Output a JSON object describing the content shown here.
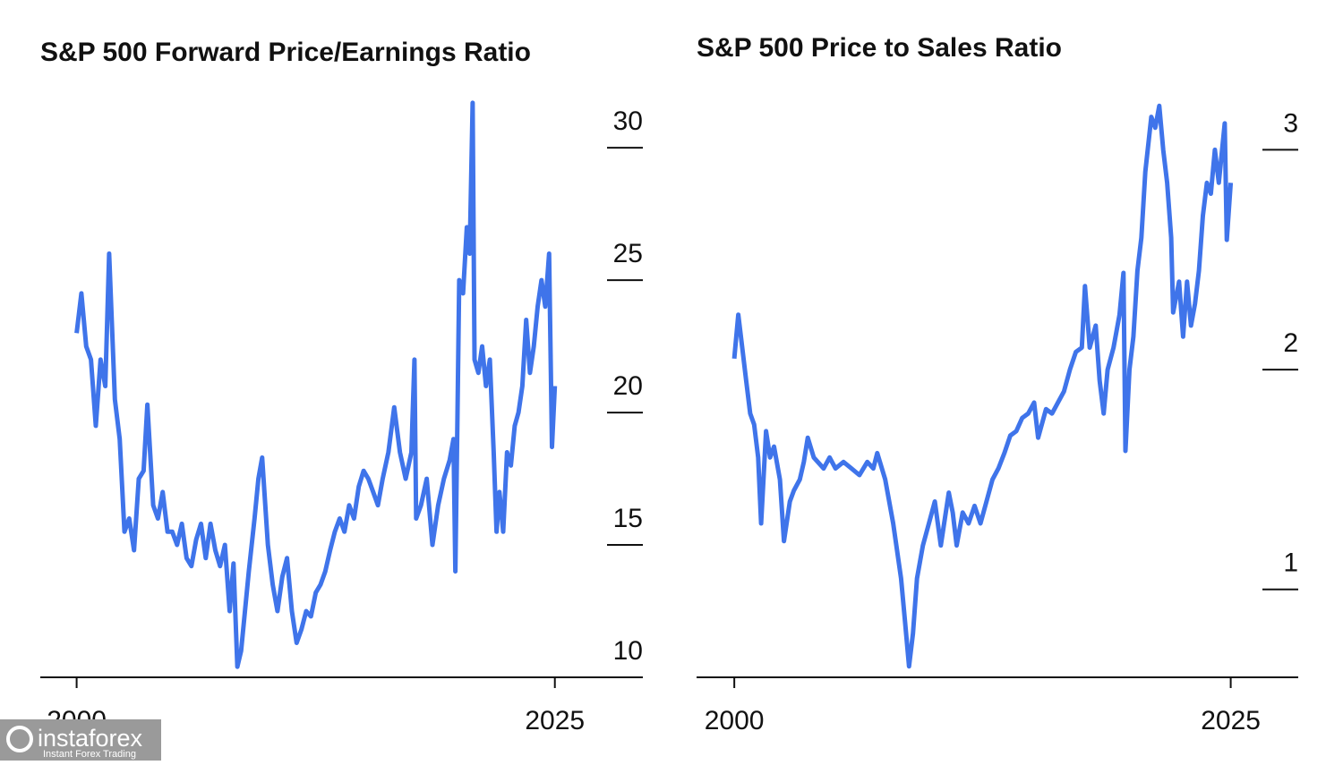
{
  "chart_data": [
    {
      "type": "line",
      "title": "S&P 500 Forward Price/Earnings Ratio",
      "color": "#3f74ea",
      "xlim": [
        1998.1,
        2029.6
      ],
      "xticks": [
        2000,
        2025
      ],
      "ylim": [
        10,
        32
      ],
      "yticks": [
        10,
        15,
        20,
        25,
        30
      ],
      "x": [
        2000.0,
        2000.25,
        2000.5,
        2000.75,
        2001.0,
        2001.25,
        2001.5,
        2001.7,
        2002.0,
        2002.25,
        2002.5,
        2002.75,
        2003.0,
        2003.25,
        2003.5,
        2003.7,
        2004.0,
        2004.25,
        2004.5,
        2004.75,
        2005.0,
        2005.25,
        2005.5,
        2005.75,
        2006.0,
        2006.25,
        2006.5,
        2006.75,
        2007.0,
        2007.25,
        2007.5,
        2007.75,
        2008.0,
        2008.2,
        2008.4,
        2008.6,
        2008.8,
        2009.0,
        2009.3,
        2009.5,
        2009.7,
        2010.0,
        2010.25,
        2010.5,
        2010.75,
        2011.0,
        2011.25,
        2011.5,
        2011.75,
        2012.0,
        2012.25,
        2012.5,
        2012.75,
        2013.0,
        2013.25,
        2013.5,
        2013.75,
        2014.0,
        2014.25,
        2014.5,
        2014.75,
        2015.0,
        2015.25,
        2015.5,
        2015.75,
        2016.0,
        2016.3,
        2016.6,
        2016.9,
        2017.2,
        2017.5,
        2017.66,
        2017.75,
        2018.0,
        2018.3,
        2018.6,
        2018.9,
        2019.2,
        2019.5,
        2019.7,
        2019.8,
        2019.9,
        2020.0,
        2020.2,
        2020.4,
        2020.55,
        2020.7,
        2020.8,
        2021.0,
        2021.2,
        2021.4,
        2021.6,
        2021.8,
        2021.95,
        2022.1,
        2022.3,
        2022.5,
        2022.7,
        2022.9,
        2023.1,
        2023.3,
        2023.5,
        2023.7,
        2023.9,
        2024.1,
        2024.3,
        2024.5,
        2024.7,
        2024.85,
        2025.0
      ],
      "values": [
        23,
        24.5,
        22.5,
        22,
        19.5,
        22,
        21,
        26,
        20.5,
        19,
        15.5,
        16,
        14.8,
        17.5,
        17.8,
        20.3,
        16.5,
        16,
        17,
        15.5,
        15.5,
        15,
        15.8,
        14.5,
        14.2,
        15.2,
        15.8,
        14.5,
        15.8,
        14.8,
        14.2,
        15,
        12.5,
        14.3,
        10.4,
        11,
        12.5,
        14,
        16,
        17.5,
        18.3,
        15,
        13.5,
        12.5,
        13.8,
        14.5,
        12.5,
        11.3,
        11.8,
        12.5,
        12.3,
        13.2,
        13.5,
        14,
        14.8,
        15.5,
        16,
        15.5,
        16.5,
        16,
        17.2,
        17.8,
        17.5,
        17,
        16.5,
        17.5,
        18.5,
        20.2,
        18.5,
        17.5,
        18.5,
        22,
        16,
        16.5,
        17.5,
        15,
        16.5,
        17.5,
        18.2,
        19,
        14,
        19.5,
        25,
        24.5,
        27,
        26,
        31.7,
        22,
        21.5,
        22.5,
        21,
        22,
        18.5,
        15.5,
        17,
        15.5,
        18.5,
        18,
        19.5,
        20,
        21,
        23.5,
        21.5,
        22.5,
        24,
        25,
        24,
        26,
        18.7,
        21
      ]
    },
    {
      "type": "line",
      "title": "S&P 500 Price to Sales Ratio",
      "color": "#3f74ea",
      "xlim": [
        1998.1,
        2028.4
      ],
      "xticks": [
        2000,
        2025
      ],
      "ylim": [
        0.6,
        3.25
      ],
      "yticks": [
        1,
        2,
        3
      ],
      "x": [
        2000.0,
        2000.2,
        2000.4,
        2000.6,
        2000.8,
        2001.0,
        2001.2,
        2001.35,
        2001.6,
        2001.8,
        2002.0,
        2002.3,
        2002.5,
        2002.8,
        2003.0,
        2003.3,
        2003.5,
        2003.7,
        2004.0,
        2004.5,
        2004.8,
        2005.1,
        2005.5,
        2005.9,
        2006.3,
        2006.7,
        2007.0,
        2007.2,
        2007.6,
        2008.0,
        2008.4,
        2008.6,
        2008.8,
        2009.0,
        2009.2,
        2009.5,
        2009.8,
        2010.1,
        2010.4,
        2010.8,
        2011.0,
        2011.2,
        2011.5,
        2011.8,
        2012.1,
        2012.4,
        2012.7,
        2013.0,
        2013.3,
        2013.6,
        2013.9,
        2014.2,
        2014.5,
        2014.8,
        2015.1,
        2015.3,
        2015.7,
        2016.0,
        2016.3,
        2016.6,
        2016.9,
        2017.2,
        2017.5,
        2017.66,
        2017.9,
        2018.2,
        2018.4,
        2018.6,
        2018.8,
        2019.1,
        2019.4,
        2019.6,
        2019.7,
        2019.9,
        2020.1,
        2020.3,
        2020.5,
        2020.7,
        2021.0,
        2021.2,
        2021.4,
        2021.6,
        2021.8,
        2022.0,
        2022.1,
        2022.4,
        2022.6,
        2022.8,
        2023.0,
        2023.2,
        2023.4,
        2023.6,
        2023.8,
        2024.0,
        2024.2,
        2024.4,
        2024.7,
        2024.8,
        2025.0
      ],
      "values": [
        2.05,
        2.25,
        2.1,
        1.95,
        1.8,
        1.75,
        1.6,
        1.3,
        1.72,
        1.6,
        1.65,
        1.5,
        1.22,
        1.4,
        1.45,
        1.5,
        1.58,
        1.69,
        1.6,
        1.55,
        1.6,
        1.55,
        1.58,
        1.55,
        1.52,
        1.58,
        1.55,
        1.62,
        1.5,
        1.3,
        1.05,
        0.85,
        0.65,
        0.8,
        1.05,
        1.2,
        1.3,
        1.4,
        1.2,
        1.44,
        1.35,
        1.2,
        1.35,
        1.3,
        1.38,
        1.3,
        1.4,
        1.5,
        1.55,
        1.62,
        1.7,
        1.72,
        1.78,
        1.8,
        1.85,
        1.69,
        1.82,
        1.8,
        1.85,
        1.9,
        2.0,
        2.08,
        2.1,
        2.38,
        2.1,
        2.2,
        1.95,
        1.8,
        2.0,
        2.1,
        2.25,
        2.44,
        1.63,
        2.0,
        2.15,
        2.45,
        2.6,
        2.9,
        3.15,
        3.1,
        3.2,
        3.0,
        2.85,
        2.6,
        2.26,
        2.4,
        2.15,
        2.4,
        2.2,
        2.3,
        2.45,
        2.7,
        2.85,
        2.8,
        3.0,
        2.85,
        3.12,
        2.59,
        2.85
      ]
    }
  ],
  "watermark": {
    "brand": "instaforex",
    "tagline": "Instant Forex Trading"
  }
}
